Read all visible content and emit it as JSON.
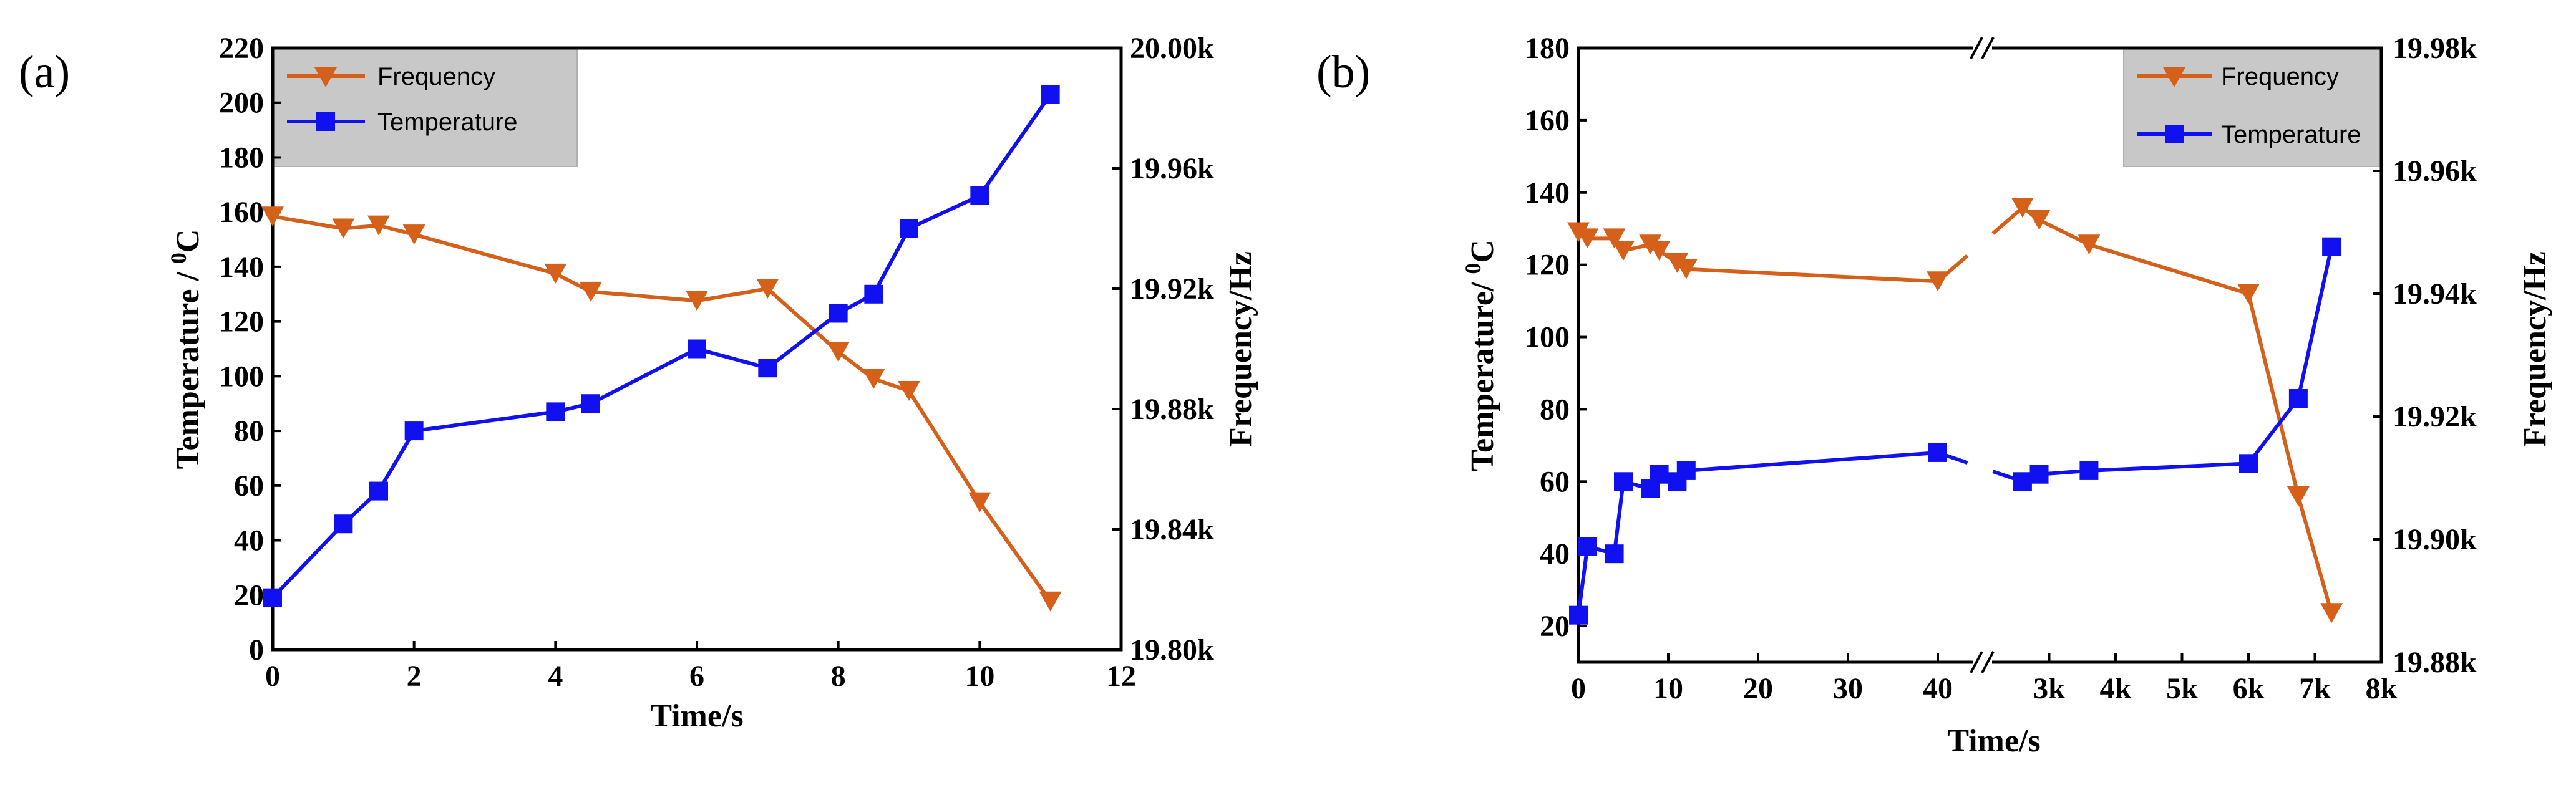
{
  "chart_data": [
    {
      "panel_label": "(a)",
      "type": "line",
      "title": "",
      "xlabel": "Time/s",
      "ylabel_left": "Temperature / 0C",
      "ylabel_left_parts": {
        "main": "Temperature / ",
        "sup": "0",
        "unit": "C"
      },
      "ylabel_right": "Frequency/Hz",
      "xlim": [
        0,
        12
      ],
      "ylim_left": [
        0,
        220
      ],
      "ylim_right": [
        19800,
        20000
      ],
      "x_ticks": [
        "0",
        "2",
        "4",
        "6",
        "8",
        "10",
        "12"
      ],
      "y_left_ticks": [
        "0",
        "20",
        "40",
        "60",
        "80",
        "100",
        "120",
        "140",
        "160",
        "180",
        "200",
        "220"
      ],
      "y_right_ticks": [
        "19.80k",
        "19.84k",
        "19.88k",
        "19.92k",
        "19.96k",
        "20.00k"
      ],
      "legend": [
        "Frequency",
        "Temperature"
      ],
      "series": [
        {
          "name": "Frequency",
          "axis": "right",
          "color": "#D4601A",
          "marker": "triangle-down",
          "x": [
            0,
            1,
            1.5,
            2,
            4,
            4.5,
            6,
            7,
            8,
            8.5,
            9,
            10,
            11
          ],
          "values": [
            19944,
            19940,
            19941,
            19938,
            19925,
            19919,
            19916,
            19920,
            19899,
            19890,
            19886,
            19849,
            19816
          ]
        },
        {
          "name": "Temperature",
          "axis": "left",
          "color": "#1010F0",
          "marker": "square",
          "x": [
            0,
            1,
            1.5,
            2,
            4,
            4.5,
            6,
            7,
            8,
            8.5,
            9,
            10,
            11
          ],
          "values": [
            19,
            46,
            58,
            80,
            87,
            90,
            110,
            103,
            123,
            130,
            154,
            166,
            203
          ]
        }
      ]
    },
    {
      "panel_label": "(b)",
      "type": "line",
      "title": "",
      "xlabel": "Time/s",
      "ylabel_left": "Temperature/ 0C",
      "ylabel_left_parts": {
        "main": "Temperature/ ",
        "sup": "0",
        "unit": "C"
      },
      "ylabel_right": "Frequency/Hz",
      "x_axis_break": "after 45 s (linear 0–45, then linear 2k–8k)",
      "ylim_left": [
        10,
        180
      ],
      "ylim_right": [
        19880,
        19980
      ],
      "x_ticks": [
        "0",
        "10",
        "20",
        "30",
        "40",
        "3k",
        "4k",
        "5k",
        "6k",
        "7k",
        "8k"
      ],
      "y_left_ticks": [
        "20",
        "40",
        "60",
        "80",
        "100",
        "120",
        "140",
        "160",
        "180"
      ],
      "y_right_ticks": [
        "19.88k",
        "19.90k",
        "19.92k",
        "19.94k",
        "19.96k",
        "19.98k"
      ],
      "legend": [
        "Frequency",
        "Temperature"
      ],
      "series": [
        {
          "name": "Frequency",
          "axis": "right",
          "color": "#D4601A",
          "marker": "triangle-down",
          "x": [
            0,
            1,
            4,
            5,
            8,
            9,
            11,
            12,
            40,
            2600,
            2850,
            3600,
            6000,
            6750,
            7250
          ],
          "values": [
            19950,
            19949,
            19949,
            19947,
            19948,
            19947,
            19945,
            19944,
            19942,
            19954,
            19952,
            19948,
            19940,
            19907,
            19888
          ]
        },
        {
          "name": "Temperature",
          "axis": "left",
          "color": "#1010F0",
          "marker": "square",
          "x": [
            0,
            1,
            4,
            5,
            8,
            9,
            11,
            12,
            40,
            2600,
            2850,
            3600,
            6000,
            6750,
            7250
          ],
          "values": [
            23,
            42,
            40,
            60,
            58,
            62,
            60,
            63,
            68,
            60,
            62,
            63,
            65,
            83,
            125
          ]
        }
      ]
    }
  ]
}
